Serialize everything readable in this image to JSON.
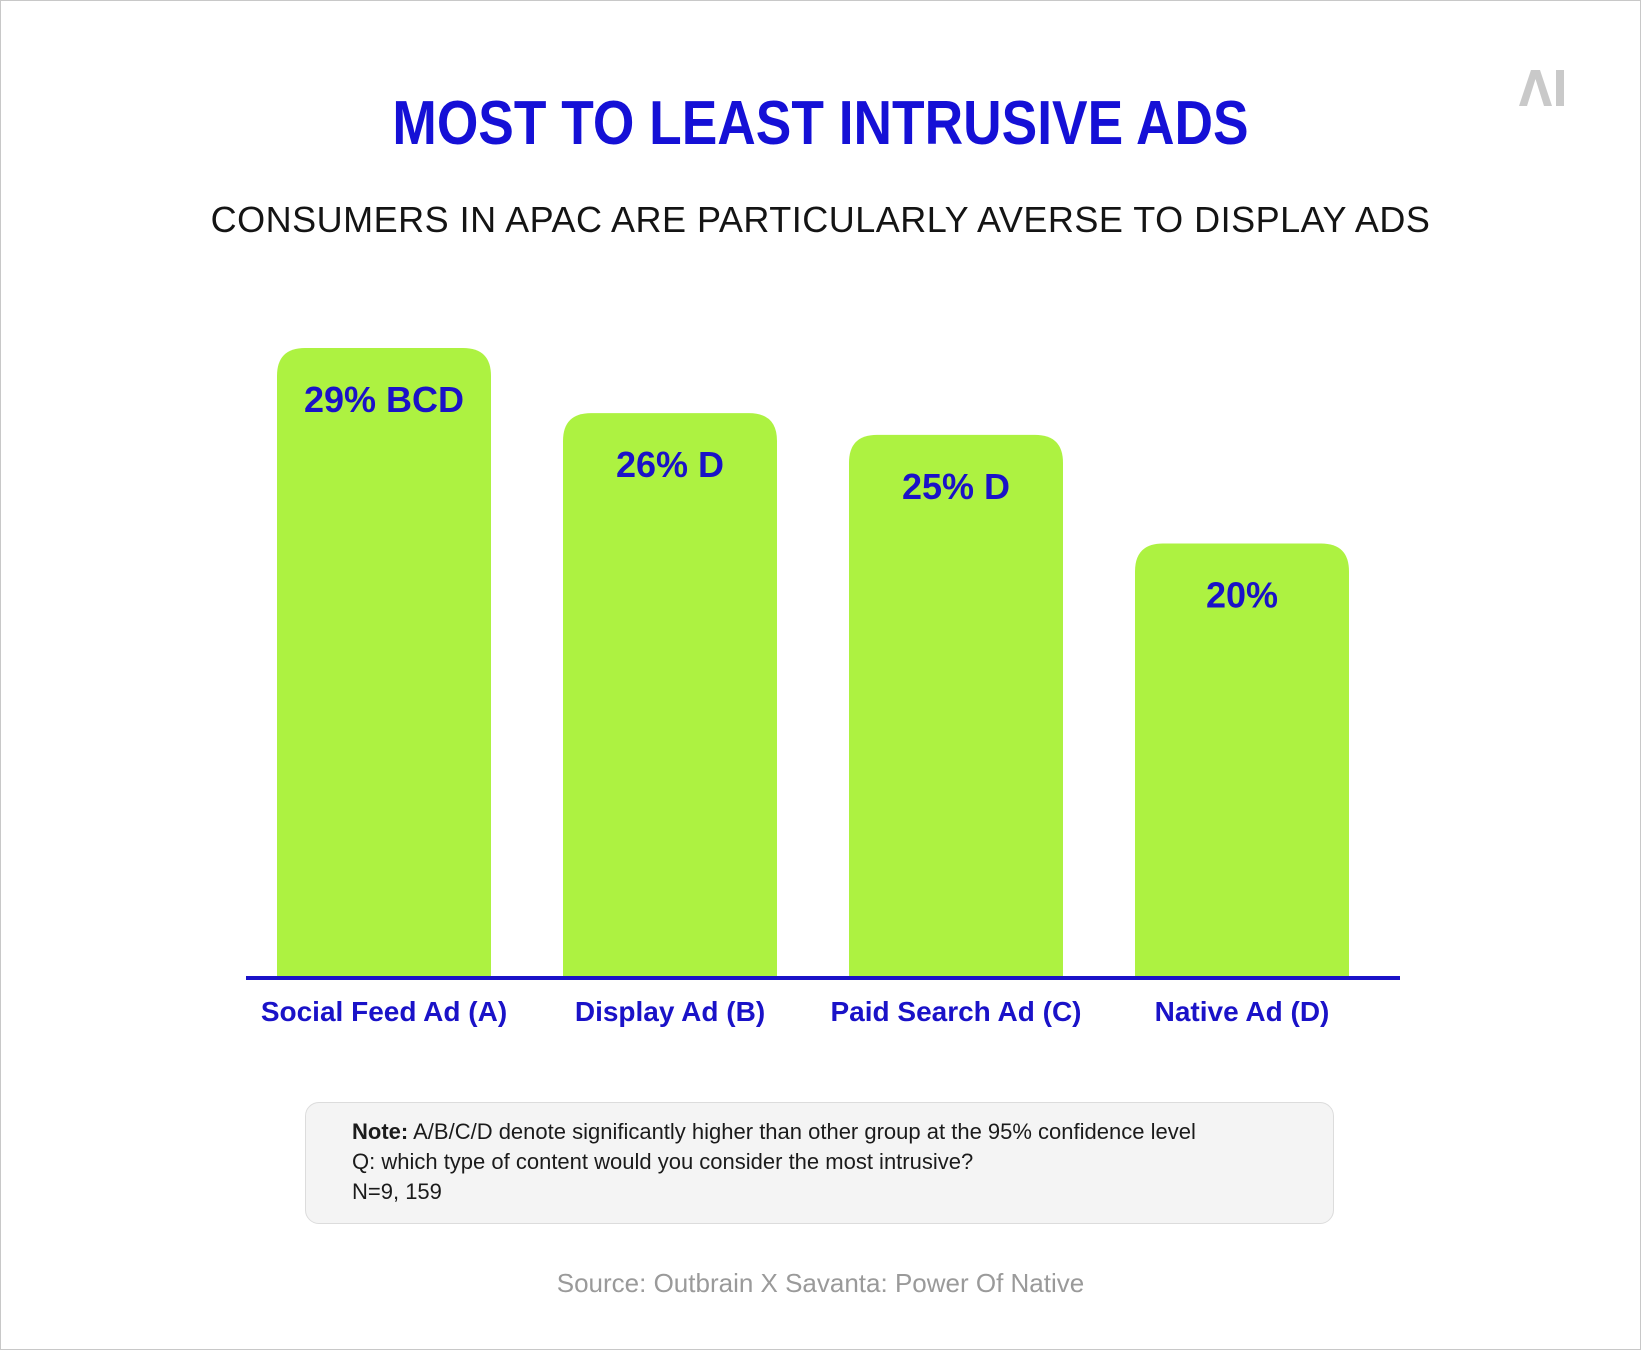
{
  "logo": {
    "text": "AI",
    "color": "#c9c9c9"
  },
  "title": "MOST TO LEAST INTRUSIVE ADS",
  "subtitle": "CONSUMERS IN APAC ARE PARTICULARLY AVERSE TO DISPLAY ADS",
  "chart_data": {
    "type": "bar",
    "categories": [
      "Social Feed Ad (A)",
      "Display Ad (B)",
      "Paid Search Ad (C)",
      "Native Ad (D)"
    ],
    "values": [
      29,
      26,
      25,
      20
    ],
    "data_labels": [
      "29% BCD",
      "26% D",
      "25% D",
      "20%"
    ],
    "ylim": [
      0,
      29
    ],
    "grid": false,
    "legend": "none",
    "colors": {
      "bar": "#adf241",
      "label": "#1a12c8",
      "baseline": "#1a12c8"
    }
  },
  "note": {
    "key": "Note:",
    "text": " A/B/C/D denote significantly higher than other group at the 95% confidence level",
    "question": "Q: which type of content would you consider the most intrusive?",
    "sample": "N=9, 159"
  },
  "source": "Source: Outbrain X Savanta: Power Of Native",
  "colors": {
    "title": "#1510d6",
    "subtitle": "#141414",
    "source": "#9a9a9a",
    "note_background": "#f4f4f4"
  }
}
